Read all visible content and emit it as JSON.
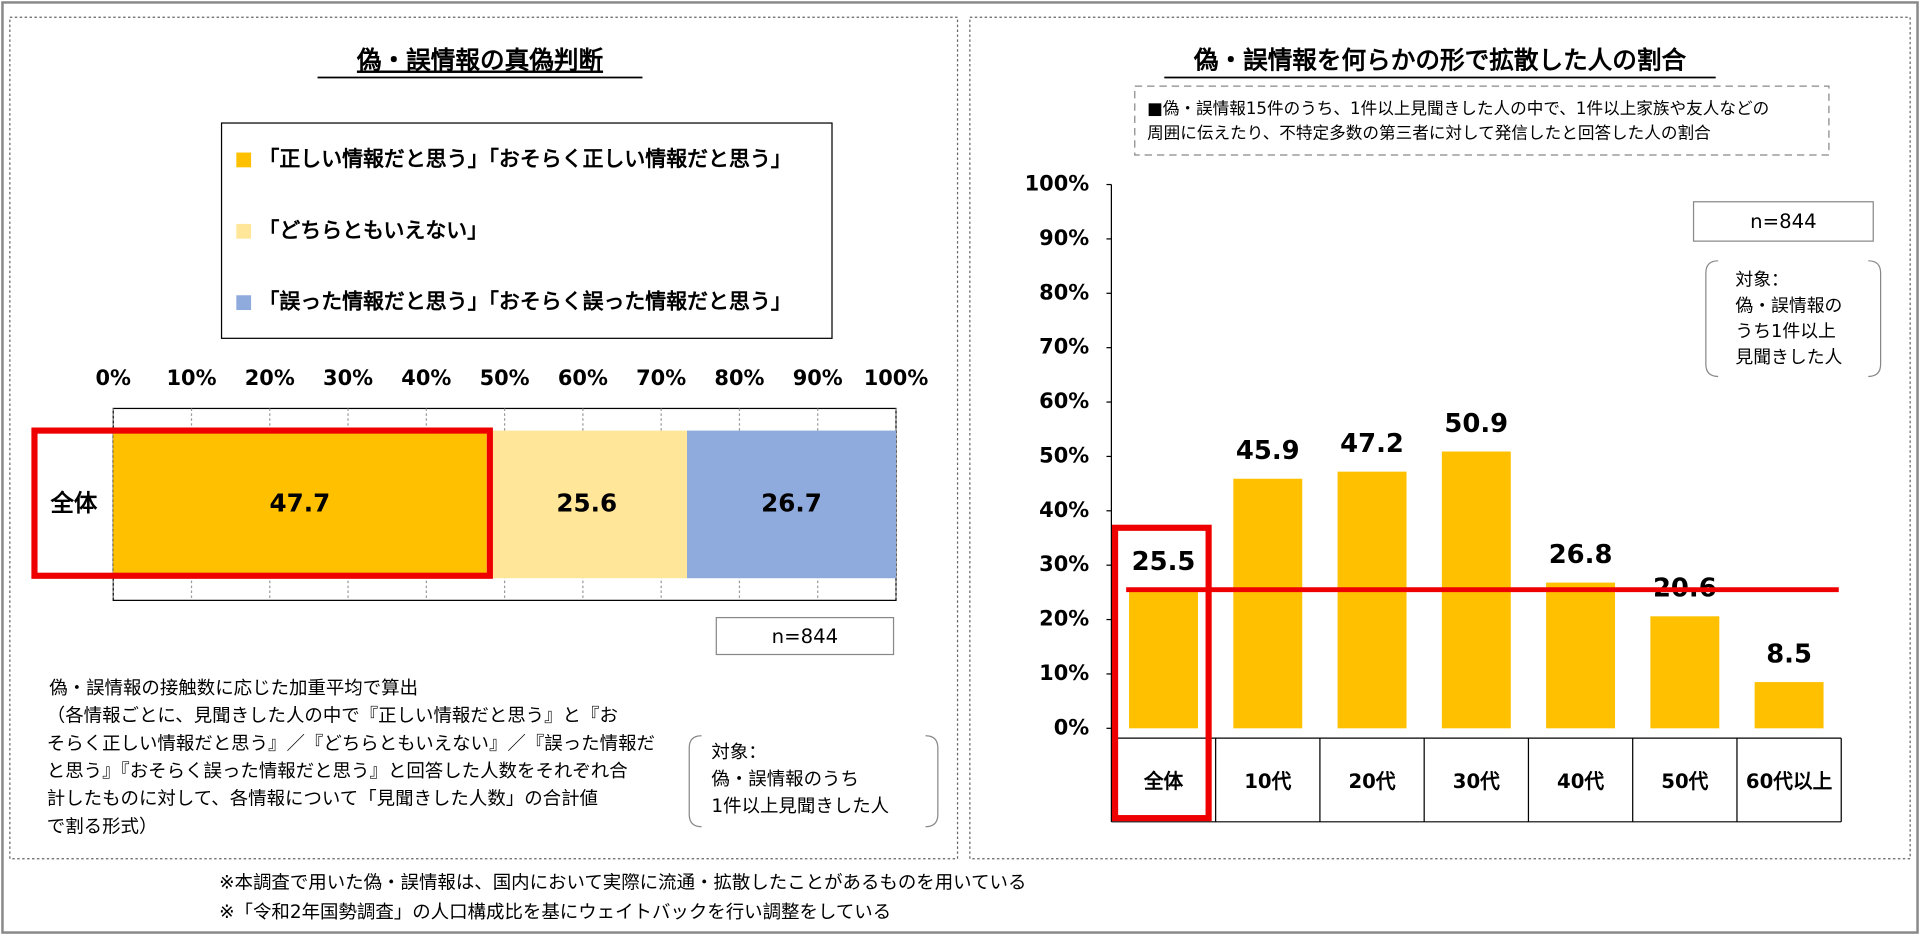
{
  "chart_data": [
    {
      "type": "stacked-bar-horizontal",
      "title": "偽・誤情報の真偽判断",
      "categories": [
        "全体"
      ],
      "series": [
        {
          "name": "「正しい情報だと思う」「おそらく正しい情報だと思う」",
          "color": "#ffc000",
          "values": [
            47.7
          ]
        },
        {
          "name": "「どちらともいえない」",
          "color": "#ffe699",
          "values": [
            25.6
          ]
        },
        {
          "name": "「誤った情報だと思う」「おそらく誤った情報だと思う」",
          "color": "#8faadc",
          "values": [
            26.7
          ]
        }
      ],
      "xlim": [
        0,
        100
      ],
      "xticks": [
        {
          "value": 0,
          "label": "0%"
        },
        {
          "value": 10,
          "label": "10%"
        },
        {
          "value": 20,
          "label": "20%"
        },
        {
          "value": 30,
          "label": "30%"
        },
        {
          "value": 40,
          "label": "40%"
        },
        {
          "value": 50,
          "label": "50%"
        },
        {
          "value": 60,
          "label": "60%"
        },
        {
          "value": 70,
          "label": "70%"
        },
        {
          "value": 80,
          "label": "80%"
        },
        {
          "value": 90,
          "label": "90%"
        },
        {
          "value": 100,
          "label": "100%"
        }
      ],
      "sample": "n=844",
      "note": [
        "偽・誤情報の接触数に応じた加重平均で算出",
        "（各情報ごとに、見聞きした人の中で『正しい情報だと思う』と『お",
        "そらく正しい情報だと思う』／『どちらともいえない』／『誤った情報だ",
        "と思う』『おそらく誤った情報だと思う』と回答した人数をそれぞれ合",
        "計したものに対して、各情報について「見聞きした人数」の合計値",
        "で割る形式）"
      ],
      "target": [
        "対象：",
        "偽・誤情報のうち",
        "1件以上見聞きした人"
      ]
    },
    {
      "type": "bar",
      "title": "偽・誤情報を何らかの形で拡散した人の割合",
      "subtitle": [
        "■偽・誤情報15件のうち、1件以上見聞きした人の中で、1件以上家族や友人などの",
        "周囲に伝えたり、不特定多数の第三者に対して発信したと回答した人の割合"
      ],
      "categories": [
        "全体",
        "10代",
        "20代",
        "30代",
        "40代",
        "50代",
        "60代以上"
      ],
      "values": [
        25.5,
        45.9,
        47.2,
        50.9,
        26.8,
        20.6,
        8.5
      ],
      "color": "#ffc000",
      "ylim": [
        0,
        100
      ],
      "yticks": [
        {
          "value": 0,
          "label": "0%"
        },
        {
          "value": 10,
          "label": "10%"
        },
        {
          "value": 20,
          "label": "20%"
        },
        {
          "value": 30,
          "label": "30%"
        },
        {
          "value": 40,
          "label": "40%"
        },
        {
          "value": 50,
          "label": "50%"
        },
        {
          "value": 60,
          "label": "60%"
        },
        {
          "value": 70,
          "label": "70%"
        },
        {
          "value": 80,
          "label": "80%"
        },
        {
          "value": 90,
          "label": "90%"
        },
        {
          "value": 100,
          "label": "100%"
        }
      ],
      "sample": "n=844",
      "target": [
        "対象：",
        "偽・誤情報の",
        "うち1件以上",
        "見聞きした人"
      ]
    }
  ],
  "footnotes": [
    "※本調査で用いた偽・誤情報は、国内において実際に流通・拡散したことがあるものを用いている",
    "※「令和2年国勢調査」の人口構成比を基にウェイトバックを行い調整をしている"
  ]
}
